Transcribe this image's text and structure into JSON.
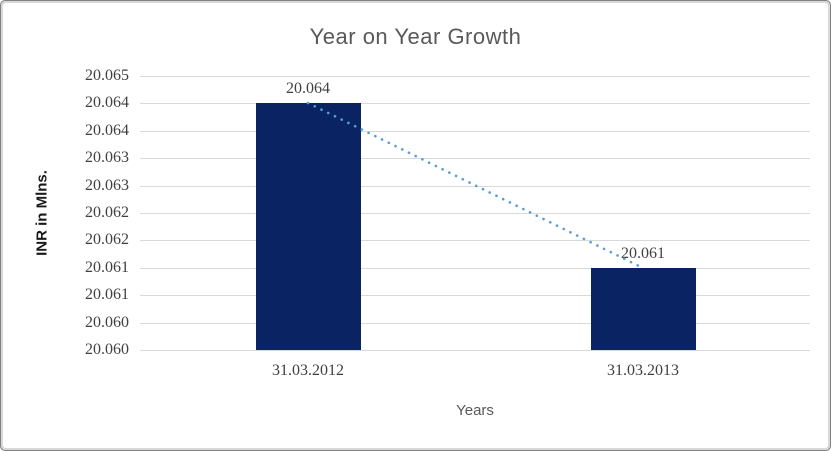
{
  "chart_data": {
    "type": "bar",
    "title": "Year on Year Growth",
    "xlabel": "Years",
    "ylabel": "INR in Mlns.",
    "categories": [
      "31.03.2012",
      "31.03.2013"
    ],
    "values": [
      20.0645,
      20.0615
    ],
    "data_labels": [
      "20.064",
      "20.061"
    ],
    "ylim": [
      20.06,
      20.065
    ],
    "ytick_labels_top_to_bottom": [
      "20.065",
      "20.064",
      "20.064",
      "20.063",
      "20.063",
      "20.062",
      "20.062",
      "20.061",
      "20.061",
      "20.060",
      "20.060"
    ],
    "grid": true,
    "legend": "none",
    "trendline": {
      "type": "linear",
      "style": "dotted",
      "color": "#5b9bd5"
    },
    "colors": {
      "bar": "#0a2463",
      "gridline": "#d9d9d9",
      "title_text": "#595959",
      "axis_title_text": "#595959",
      "y_axis_title_text": "#1a1a1a",
      "tick_text": "#404040",
      "data_label_text": "#404040",
      "background": "#ffffff"
    }
  }
}
